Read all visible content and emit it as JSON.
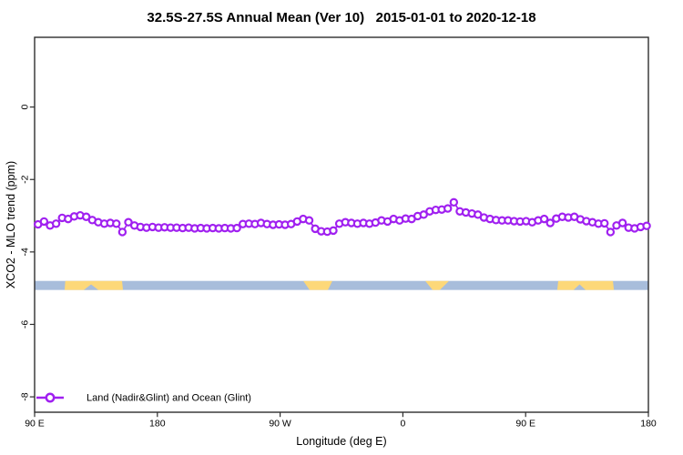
{
  "title": "32.5S-27.5S Annual Mean (Ver 10)   2015-01-01 to 2020-12-18",
  "chart_data": {
    "type": "line",
    "title": "32.5S-27.5S Annual Mean (Ver 10)   2015-01-01 to 2020-12-18",
    "xlabel": "Longitude (deg E)",
    "ylabel": "XCO2 - MLO trend (ppm)",
    "xlim_lon_continuous": [
      90,
      540
    ],
    "ylim": [
      -8.425,
      1.925
    ],
    "grid": false,
    "frame_color": "#2e2e2e",
    "x_axis": {
      "ticks": [
        {
          "lon": 90,
          "label": "90 E"
        },
        {
          "lon": 180,
          "label": "180"
        },
        {
          "lon": 270,
          "label": "90 W"
        },
        {
          "lon": 360,
          "label": "0"
        },
        {
          "lon": 450,
          "label": "90 E"
        },
        {
          "lon": 540,
          "label": "180"
        }
      ]
    },
    "y_axis": {
      "ticks": [
        {
          "value": 0,
          "label": "0"
        },
        {
          "value": -2,
          "label": "-2"
        },
        {
          "value": -4,
          "label": "-4"
        },
        {
          "value": -6,
          "label": "-6"
        },
        {
          "value": -8,
          "label": "-8"
        }
      ]
    },
    "series": [
      {
        "name": "Land (Nadir&Glint) and Ocean (Glint)",
        "color": "#A020F0",
        "marker": "open-circle",
        "marker_fill": "#ffffff",
        "lon_start": 92.5,
        "lon_step": 4.418,
        "values": [
          -3.24,
          -3.16,
          -3.27,
          -3.22,
          -3.06,
          -3.09,
          -3.02,
          -2.99,
          -3.03,
          -3.12,
          -3.18,
          -3.22,
          -3.2,
          -3.22,
          -3.45,
          -3.18,
          -3.27,
          -3.31,
          -3.33,
          -3.31,
          -3.33,
          -3.32,
          -3.33,
          -3.33,
          -3.34,
          -3.33,
          -3.35,
          -3.34,
          -3.35,
          -3.34,
          -3.35,
          -3.34,
          -3.35,
          -3.34,
          -3.23,
          -3.22,
          -3.23,
          -3.2,
          -3.23,
          -3.25,
          -3.24,
          -3.25,
          -3.23,
          -3.16,
          -3.09,
          -3.13,
          -3.36,
          -3.43,
          -3.44,
          -3.41,
          -3.22,
          -3.18,
          -3.2,
          -3.22,
          -3.2,
          -3.22,
          -3.19,
          -3.13,
          -3.16,
          -3.09,
          -3.13,
          -3.08,
          -3.09,
          -3.01,
          -2.97,
          -2.88,
          -2.84,
          -2.83,
          -2.8,
          -2.63,
          -2.88,
          -2.91,
          -2.94,
          -2.97,
          -3.05,
          -3.09,
          -3.12,
          -3.13,
          -3.13,
          -3.15,
          -3.16,
          -3.15,
          -3.18,
          -3.13,
          -3.09,
          -3.2,
          -3.08,
          -3.03,
          -3.05,
          -3.03,
          -3.1,
          -3.15,
          -3.18,
          -3.22,
          -3.21,
          -3.45,
          -3.27,
          -3.2,
          -3.33,
          -3.35,
          -3.31,
          -3.28
        ]
      }
    ],
    "surface_band": {
      "description": "land/ocean fraction strip",
      "value_top": -4.8,
      "value_bottom": -5.05,
      "ocean_color": "#A8BDDB",
      "land_color": "#FDD879",
      "land_segments": [
        {
          "top_lon": [
            112.5,
            154.1
          ],
          "bottom_lon": [
            112.0,
            154.8
          ],
          "notch_lon": [
            126.1,
            136.7
          ]
        },
        {
          "top_lon": [
            287.0,
            308.3
          ],
          "bottom_lon": [
            291.6,
            305.0
          ]
        },
        {
          "top_lon": [
            376.4,
            393.8
          ],
          "bottom_lon": [
            381.8,
            387.1
          ]
        },
        {
          "top_lon": [
            473.9,
            514.0
          ],
          "bottom_lon": [
            473.2,
            514.7
          ],
          "notch_lon": [
            485.2,
            493.9
          ]
        }
      ]
    },
    "legend": {
      "label": "Land (Nadir&Glint) and Ocean (Glint)",
      "position": "bottom-left"
    }
  }
}
